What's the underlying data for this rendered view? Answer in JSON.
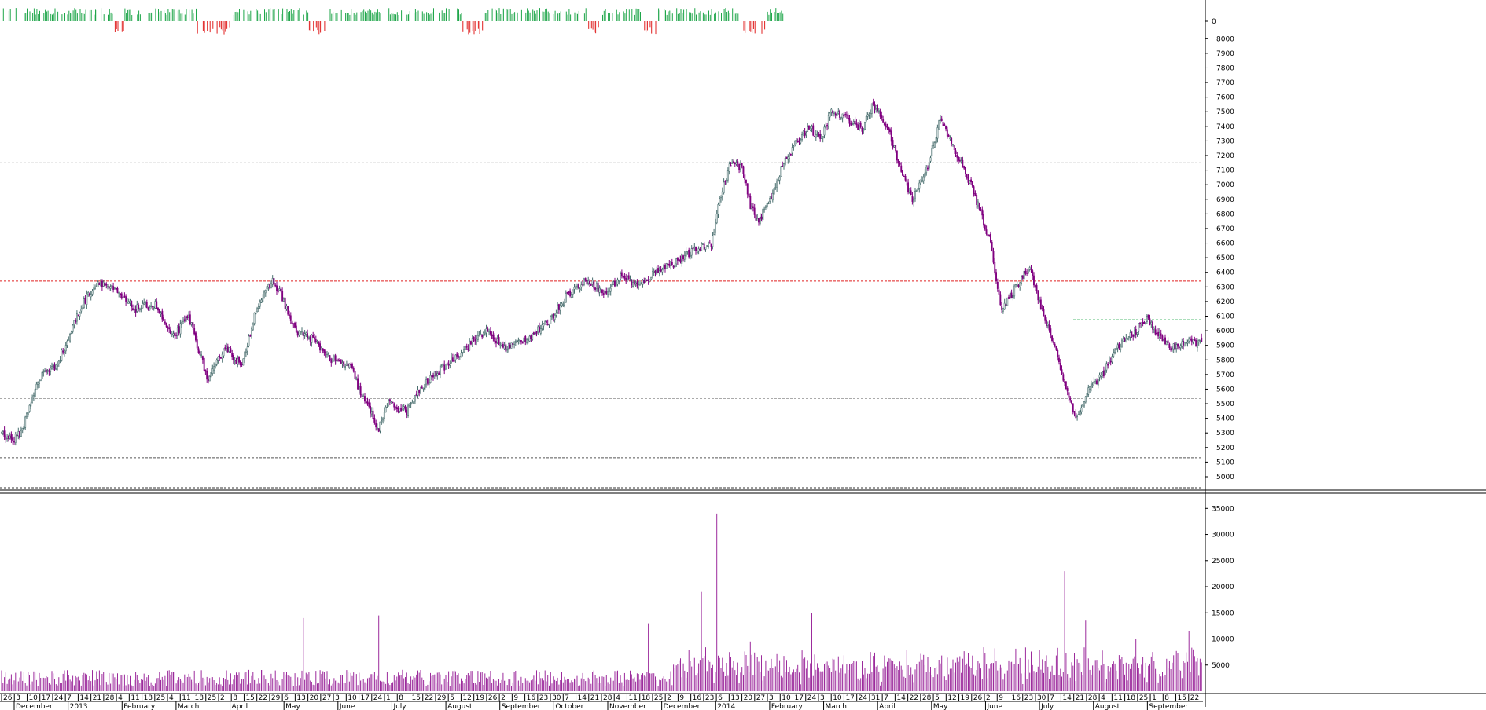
{
  "chart_data": [
    {
      "type": "bar",
      "panel": "momentum-histogram",
      "y_ticks": [
        "0"
      ],
      "colors": {
        "positive": "#1fa64a",
        "negative": "#e02020"
      },
      "segments": [
        {
          "from": 0,
          "to": 80,
          "sign": 1
        },
        {
          "from": 80,
          "to": 88,
          "sign": -1
        },
        {
          "from": 88,
          "to": 140,
          "sign": 1
        },
        {
          "from": 140,
          "to": 165,
          "sign": -1
        },
        {
          "from": 165,
          "to": 220,
          "sign": 1
        },
        {
          "from": 220,
          "to": 232,
          "sign": -1
        },
        {
          "from": 232,
          "to": 330,
          "sign": 1
        },
        {
          "from": 330,
          "to": 346,
          "sign": -1
        },
        {
          "from": 346,
          "to": 420,
          "sign": 1
        },
        {
          "from": 420,
          "to": 428,
          "sign": -1
        },
        {
          "from": 428,
          "to": 458,
          "sign": 1
        },
        {
          "from": 458,
          "to": 470,
          "sign": -1
        },
        {
          "from": 470,
          "to": 528,
          "sign": 1
        },
        {
          "from": 528,
          "to": 548,
          "sign": -1
        },
        {
          "from": 548,
          "to": 560,
          "sign": 1
        }
      ]
    },
    {
      "type": "candlestick",
      "panel": "price",
      "y_ticks": [
        5000,
        5100,
        5200,
        5300,
        5400,
        5500,
        5600,
        5700,
        5800,
        5900,
        6000,
        6100,
        6200,
        6300,
        6400,
        6500,
        6600,
        6700,
        6800,
        6900,
        7000,
        7100,
        7200,
        7300,
        7400,
        7500,
        7600,
        7700,
        7800,
        7900,
        8000
      ],
      "ylim": [
        4930,
        8050
      ],
      "up_color": "#ffffff",
      "down_color": "#800080",
      "horizontal_levels": [
        {
          "value": 6340,
          "color": "#e02020"
        },
        {
          "value": 7150,
          "color": "#aaaaaa"
        },
        {
          "value": 5535,
          "color": "#aaaaaa"
        },
        {
          "value": 5130,
          "color": "#555555"
        },
        {
          "value": 6075,
          "color": "#1fa64a"
        }
      ],
      "close_path": [
        [
          0,
          5300
        ],
        [
          8,
          5250
        ],
        [
          14,
          5300
        ],
        [
          22,
          5550
        ],
        [
          30,
          5720
        ],
        [
          38,
          5750
        ],
        [
          46,
          5900
        ],
        [
          54,
          6100
        ],
        [
          62,
          6250
        ],
        [
          70,
          6340
        ],
        [
          80,
          6280
        ],
        [
          95,
          6150
        ],
        [
          110,
          6180
        ],
        [
          122,
          5950
        ],
        [
          134,
          6100
        ],
        [
          148,
          5650
        ],
        [
          160,
          5900
        ],
        [
          172,
          5750
        ],
        [
          182,
          6150
        ],
        [
          194,
          6340
        ],
        [
          200,
          6250
        ],
        [
          210,
          6000
        ],
        [
          222,
          5950
        ],
        [
          236,
          5800
        ],
        [
          250,
          5750
        ],
        [
          258,
          5550
        ],
        [
          264,
          5450
        ],
        [
          270,
          5320
        ],
        [
          276,
          5500
        ],
        [
          290,
          5450
        ],
        [
          300,
          5600
        ],
        [
          310,
          5700
        ],
        [
          320,
          5780
        ],
        [
          334,
          5900
        ],
        [
          346,
          6000
        ],
        [
          360,
          5880
        ],
        [
          376,
          5950
        ],
        [
          390,
          6040
        ],
        [
          405,
          6250
        ],
        [
          420,
          6350
        ],
        [
          432,
          6250
        ],
        [
          444,
          6380
        ],
        [
          456,
          6300
        ],
        [
          470,
          6420
        ],
        [
          484,
          6480
        ],
        [
          496,
          6550
        ],
        [
          508,
          6600
        ],
        [
          514,
          6900
        ],
        [
          522,
          7150
        ],
        [
          530,
          7120
        ],
        [
          536,
          6850
        ],
        [
          542,
          6750
        ],
        [
          550,
          6900
        ],
        [
          560,
          7150
        ],
        [
          570,
          7300
        ],
        [
          578,
          7400
        ],
        [
          586,
          7300
        ],
        [
          594,
          7500
        ],
        [
          606,
          7450
        ],
        [
          616,
          7380
        ],
        [
          624,
          7550
        ],
        [
          634,
          7400
        ],
        [
          642,
          7150
        ],
        [
          652,
          6900
        ],
        [
          662,
          7100
        ],
        [
          672,
          7450
        ],
        [
          684,
          7200
        ],
        [
          694,
          7000
        ],
        [
          708,
          6600
        ],
        [
          716,
          6130
        ],
        [
          726,
          6300
        ],
        [
          736,
          6450
        ],
        [
          744,
          6150
        ],
        [
          754,
          5900
        ],
        [
          762,
          5600
        ],
        [
          770,
          5400
        ],
        [
          778,
          5600
        ],
        [
          788,
          5700
        ],
        [
          800,
          5900
        ],
        [
          812,
          6000
        ],
        [
          820,
          6080
        ],
        [
          830,
          5950
        ],
        [
          838,
          5880
        ],
        [
          846,
          5920
        ]
      ]
    },
    {
      "type": "bar",
      "panel": "volume",
      "y_ticks": [
        5000,
        10000,
        15000,
        20000,
        25000,
        30000,
        35000
      ],
      "ylim": [
        0,
        37000
      ],
      "color": "#9c2b9c",
      "spikes": [
        {
          "index": 216,
          "value": 14000
        },
        {
          "index": 270,
          "value": 14500
        },
        {
          "index": 463,
          "value": 13000
        },
        {
          "index": 501,
          "value": 19000
        },
        {
          "index": 512,
          "value": 34000
        },
        {
          "index": 536,
          "value": 9500
        },
        {
          "index": 580,
          "value": 15000
        },
        {
          "index": 622,
          "value": 7500
        },
        {
          "index": 761,
          "value": 23000
        },
        {
          "index": 776,
          "value": 13500
        },
        {
          "index": 812,
          "value": 10000
        },
        {
          "index": 850,
          "value": 11500
        }
      ]
    }
  ],
  "x_axis": {
    "day_labels": [
      "26",
      "3",
      "10",
      "17",
      "24",
      "7",
      "14",
      "21",
      "28",
      "4",
      "11",
      "18",
      "25",
      "4",
      "11",
      "18",
      "25",
      "2",
      "8",
      "15",
      "22",
      "29",
      "6",
      "13",
      "20",
      "27",
      "3",
      "10",
      "17",
      "24",
      "1",
      "8",
      "15",
      "22",
      "29",
      "5",
      "12",
      "19",
      "26",
      "2",
      "9",
      "16",
      "23",
      "30",
      "7",
      "14",
      "21",
      "28",
      "4",
      "11",
      "18",
      "25",
      "2",
      "9",
      "16",
      "23",
      "6",
      "13",
      "20",
      "27",
      "3",
      "10",
      "17",
      "24",
      "3",
      "10",
      "17",
      "24",
      "31",
      "7",
      "14",
      "22",
      "28",
      "5",
      "12",
      "19",
      "26",
      "2",
      "9",
      "16",
      "23",
      "30",
      "7",
      "14",
      "21",
      "28",
      "4",
      "11",
      "18",
      "25",
      "1",
      "8",
      "15",
      "22"
    ],
    "month_labels": [
      "December",
      "2013",
      "February",
      "March",
      "April",
      "May",
      "June",
      "July",
      "August",
      "September",
      "October",
      "November",
      "December",
      "2014",
      "February",
      "March",
      "April",
      "May",
      "June",
      "July",
      "August",
      "September"
    ]
  }
}
